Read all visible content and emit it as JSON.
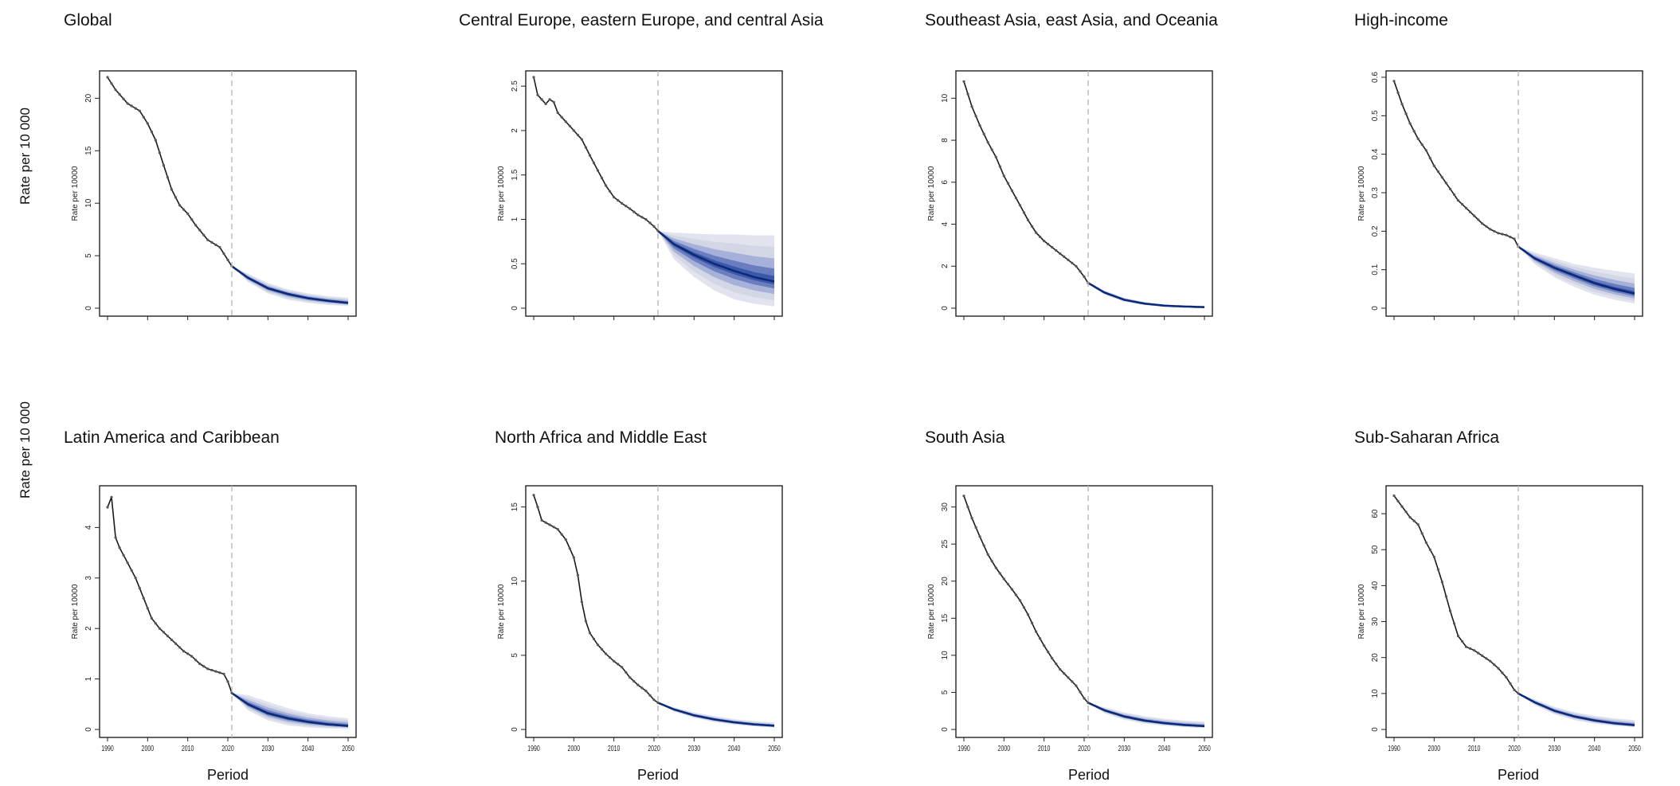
{
  "row_labels": [
    "Rate per 10 000",
    "Rate per 10 000"
  ],
  "chart_data": [
    {
      "type": "line",
      "title": "Global",
      "ylabel": "Rate per 10000",
      "xlabel": "",
      "xlim": [
        1990,
        2050
      ],
      "ylim": [
        0,
        22
      ],
      "yticks": [
        0,
        5,
        10,
        15,
        20
      ],
      "xticks": [],
      "forecast_start": 2021,
      "history": {
        "x": [
          1990,
          1992,
          1995,
          1998,
          2000,
          2002,
          2004,
          2006,
          2008,
          2010,
          2012,
          2015,
          2018,
          2020,
          2021
        ],
        "y": [
          22.0,
          20.8,
          19.5,
          18.8,
          17.6,
          16.0,
          13.6,
          11.3,
          9.8,
          9.0,
          7.9,
          6.5,
          5.8,
          4.6,
          4.0
        ]
      },
      "forecast": {
        "x": [
          2021,
          2025,
          2030,
          2035,
          2040,
          2045,
          2050
        ],
        "y": [
          4.0,
          2.9,
          1.9,
          1.35,
          0.95,
          0.7,
          0.5
        ]
      },
      "band": {
        "lower": [
          4.0,
          2.5,
          1.4,
          0.8,
          0.5,
          0.3,
          0.2
        ],
        "upper": [
          4.0,
          3.3,
          2.4,
          1.8,
          1.4,
          1.15,
          1.0
        ]
      }
    },
    {
      "type": "line",
      "title": "Central Europe, eastern Europe, and central Asia",
      "ylabel": "Rate per 10000",
      "xlabel": "",
      "xlim": [
        1990,
        2050
      ],
      "ylim": [
        0,
        2.6
      ],
      "yticks": [
        0,
        0.5,
        1.0,
        1.5,
        2.0,
        2.5
      ],
      "xticks": [],
      "forecast_start": 2021,
      "history": {
        "x": [
          1990,
          1991,
          1992,
          1993,
          1994,
          1995,
          1996,
          1997,
          1998,
          2000,
          2002,
          2004,
          2006,
          2008,
          2010,
          2012,
          2014,
          2016,
          2018,
          2020,
          2021
        ],
        "y": [
          2.6,
          2.4,
          2.35,
          2.3,
          2.35,
          2.32,
          2.2,
          2.15,
          2.1,
          2.0,
          1.9,
          1.72,
          1.55,
          1.38,
          1.25,
          1.18,
          1.12,
          1.05,
          1.0,
          0.92,
          0.87
        ]
      },
      "forecast": {
        "x": [
          2021,
          2025,
          2030,
          2035,
          2040,
          2045,
          2050
        ],
        "y": [
          0.87,
          0.72,
          0.6,
          0.5,
          0.42,
          0.35,
          0.3
        ]
      },
      "band": {
        "lower": [
          0.87,
          0.55,
          0.35,
          0.2,
          0.1,
          0.05,
          0.02
        ],
        "upper": [
          0.87,
          0.85,
          0.84,
          0.83,
          0.83,
          0.82,
          0.82
        ]
      }
    },
    {
      "type": "line",
      "title": "Southeast Asia, east Asia, and Oceania",
      "ylabel": "Rate per 10000",
      "xlabel": "",
      "xlim": [
        1990,
        2050
      ],
      "ylim": [
        0,
        11
      ],
      "yticks": [
        0,
        2,
        4,
        6,
        8,
        10
      ],
      "xticks": [],
      "forecast_start": 2021,
      "history": {
        "x": [
          1990,
          1992,
          1994,
          1996,
          1998,
          2000,
          2002,
          2004,
          2006,
          2008,
          2010,
          2012,
          2014,
          2016,
          2018,
          2020,
          2021
        ],
        "y": [
          10.8,
          9.6,
          8.7,
          7.9,
          7.2,
          6.3,
          5.6,
          4.9,
          4.2,
          3.6,
          3.2,
          2.9,
          2.6,
          2.3,
          2.0,
          1.5,
          1.2
        ]
      },
      "forecast": {
        "x": [
          2021,
          2025,
          2030,
          2035,
          2040,
          2045,
          2050
        ],
        "y": [
          1.2,
          0.75,
          0.4,
          0.22,
          0.12,
          0.08,
          0.05
        ]
      },
      "band": {
        "lower": [
          1.2,
          0.65,
          0.3,
          0.15,
          0.07,
          0.04,
          0.02
        ],
        "upper": [
          1.2,
          0.85,
          0.5,
          0.3,
          0.18,
          0.12,
          0.09
        ]
      }
    },
    {
      "type": "line",
      "title": "High-income",
      "ylabel": "Rate per 10000",
      "xlabel": "",
      "xlim": [
        1990,
        2050
      ],
      "ylim": [
        0,
        0.6
      ],
      "yticks": [
        0,
        0.1,
        0.2,
        0.3,
        0.4,
        0.5,
        0.6
      ],
      "xticks": [],
      "forecast_start": 2021,
      "history": {
        "x": [
          1990,
          1992,
          1994,
          1996,
          1998,
          2000,
          2002,
          2004,
          2006,
          2008,
          2010,
          2012,
          2014,
          2016,
          2018,
          2020,
          2021
        ],
        "y": [
          0.59,
          0.53,
          0.48,
          0.44,
          0.41,
          0.37,
          0.34,
          0.31,
          0.28,
          0.26,
          0.24,
          0.22,
          0.205,
          0.195,
          0.19,
          0.18,
          0.16
        ]
      },
      "forecast": {
        "x": [
          2021,
          2025,
          2030,
          2035,
          2040,
          2045,
          2050
        ],
        "y": [
          0.16,
          0.13,
          0.105,
          0.085,
          0.065,
          0.05,
          0.038
        ]
      },
      "band": {
        "lower": [
          0.16,
          0.115,
          0.08,
          0.055,
          0.035,
          0.022,
          0.012
        ],
        "upper": [
          0.16,
          0.145,
          0.13,
          0.115,
          0.105,
          0.097,
          0.09
        ]
      }
    },
    {
      "type": "line",
      "title": "Latin America and Caribbean",
      "ylabel": "Rate per 10000",
      "xlabel": "Period",
      "xlim": [
        1990,
        2050
      ],
      "ylim": [
        0,
        4.7
      ],
      "yticks": [
        0,
        1,
        2,
        3,
        4
      ],
      "xticks": [
        1990,
        2000,
        2010,
        2020,
        2030,
        2040,
        2050
      ],
      "forecast_start": 2021,
      "history": {
        "x": [
          1990,
          1991,
          1992,
          1993,
          1995,
          1997,
          1999,
          2001,
          2003,
          2005,
          2007,
          2009,
          2011,
          2013,
          2015,
          2017,
          2019,
          2020,
          2021
        ],
        "y": [
          4.4,
          4.6,
          3.8,
          3.6,
          3.3,
          3.0,
          2.6,
          2.2,
          2.0,
          1.85,
          1.7,
          1.55,
          1.45,
          1.3,
          1.2,
          1.15,
          1.1,
          0.95,
          0.72
        ]
      },
      "forecast": {
        "x": [
          2021,
          2025,
          2030,
          2035,
          2040,
          2045,
          2050
        ],
        "y": [
          0.72,
          0.5,
          0.32,
          0.22,
          0.15,
          0.1,
          0.07
        ]
      },
      "band": {
        "lower": [
          0.72,
          0.38,
          0.18,
          0.08,
          0.04,
          0.02,
          0.01
        ],
        "upper": [
          0.72,
          0.68,
          0.55,
          0.42,
          0.32,
          0.26,
          0.22
        ]
      }
    },
    {
      "type": "line",
      "title": "North Africa and Middle East",
      "ylabel": "Rate per 10000",
      "xlabel": "Period",
      "xlim": [
        1990,
        2050
      ],
      "ylim": [
        0,
        16
      ],
      "yticks": [
        0,
        5,
        10,
        15
      ],
      "xticks": [
        1990,
        2000,
        2010,
        2020,
        2030,
        2040,
        2050
      ],
      "forecast_start": 2021,
      "history": {
        "x": [
          1990,
          1991,
          1992,
          1994,
          1996,
          1998,
          2000,
          2001,
          2002,
          2003,
          2004,
          2006,
          2008,
          2010,
          2012,
          2014,
          2016,
          2018,
          2020,
          2021
        ],
        "y": [
          15.8,
          15.0,
          14.1,
          13.8,
          13.5,
          12.8,
          11.6,
          10.4,
          8.6,
          7.3,
          6.5,
          5.7,
          5.1,
          4.6,
          4.2,
          3.5,
          3.0,
          2.6,
          2.0,
          1.8
        ]
      },
      "forecast": {
        "x": [
          2021,
          2025,
          2030,
          2035,
          2040,
          2045,
          2050
        ],
        "y": [
          1.8,
          1.35,
          0.95,
          0.68,
          0.48,
          0.34,
          0.25
        ]
      },
      "band": {
        "lower": [
          1.8,
          1.2,
          0.78,
          0.5,
          0.32,
          0.2,
          0.12
        ],
        "upper": [
          1.8,
          1.5,
          1.15,
          0.9,
          0.7,
          0.56,
          0.46
        ]
      }
    },
    {
      "type": "line",
      "title": "South Asia",
      "ylabel": "Rate per 10000",
      "xlabel": "Period",
      "xlim": [
        1990,
        2050
      ],
      "ylim": [
        0,
        32
      ],
      "yticks": [
        0,
        5,
        10,
        15,
        20,
        25,
        30
      ],
      "xticks": [
        1990,
        2000,
        2010,
        2020,
        2030,
        2040,
        2050
      ],
      "forecast_start": 2021,
      "history": {
        "x": [
          1990,
          1992,
          1994,
          1996,
          1998,
          2000,
          2002,
          2004,
          2006,
          2008,
          2010,
          2012,
          2014,
          2016,
          2018,
          2020,
          2021
        ],
        "y": [
          31.5,
          28.5,
          26.0,
          23.6,
          21.8,
          20.3,
          18.9,
          17.4,
          15.5,
          13.2,
          11.3,
          9.6,
          8.1,
          7.0,
          5.9,
          4.2,
          3.6
        ]
      },
      "forecast": {
        "x": [
          2021,
          2025,
          2030,
          2035,
          2040,
          2045,
          2050
        ],
        "y": [
          3.6,
          2.6,
          1.75,
          1.2,
          0.85,
          0.6,
          0.45
        ]
      },
      "band": {
        "lower": [
          3.6,
          2.2,
          1.3,
          0.8,
          0.5,
          0.3,
          0.2
        ],
        "upper": [
          3.6,
          3.0,
          2.3,
          1.8,
          1.45,
          1.2,
          1.05
        ]
      }
    },
    {
      "type": "line",
      "title": "Sub-Saharan Africa",
      "ylabel": "Rate per 10000",
      "xlabel": "Period",
      "xlim": [
        1990,
        2050
      ],
      "ylim": [
        0,
        66
      ],
      "yticks": [
        0,
        10,
        20,
        30,
        40,
        50,
        60
      ],
      "xticks": [
        1990,
        2000,
        2010,
        2020,
        2030,
        2040,
        2050
      ],
      "forecast_start": 2021,
      "history": {
        "x": [
          1990,
          1992,
          1994,
          1996,
          1998,
          2000,
          2002,
          2004,
          2006,
          2008,
          2010,
          2012,
          2014,
          2016,
          2018,
          2020,
          2021
        ],
        "y": [
          65.0,
          62.0,
          59.0,
          57.0,
          52.0,
          48.0,
          41.0,
          33.0,
          26.0,
          23.0,
          22.0,
          20.5,
          19.0,
          17.0,
          14.5,
          11.0,
          10.0
        ]
      },
      "forecast": {
        "x": [
          2021,
          2025,
          2030,
          2035,
          2040,
          2045,
          2050
        ],
        "y": [
          10.0,
          7.6,
          5.2,
          3.6,
          2.5,
          1.7,
          1.2
        ]
      },
      "band": {
        "lower": [
          10.0,
          6.8,
          4.2,
          2.6,
          1.6,
          1.0,
          0.6
        ],
        "upper": [
          10.0,
          8.4,
          6.3,
          4.8,
          3.8,
          3.1,
          2.6
        ]
      }
    }
  ],
  "colors": {
    "history_line": "#1a1a1a",
    "history_points": "#555555",
    "forecast_line": "#0b2a7a",
    "band_inner": "#1f3f9f",
    "band_mid": "#6f86c9",
    "band_outer": "#c9cde0",
    "divider": "#b8b8b8"
  }
}
